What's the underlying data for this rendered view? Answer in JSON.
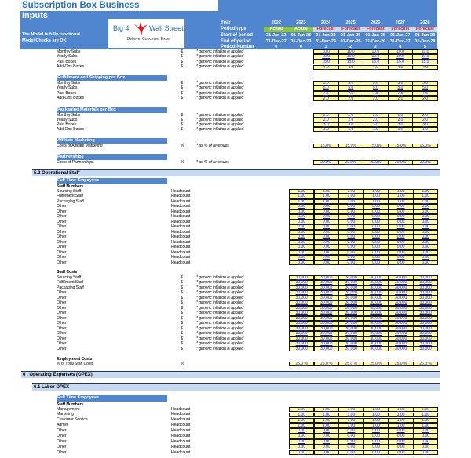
{
  "app_title": "Subscription Box Business",
  "sheet_title": "Inputs",
  "status": {
    "line1": "The Model is fully functional",
    "line2": "Model Checks are OK"
  },
  "logo": {
    "brand_left": "Big 4",
    "brand_right": "Wall Street",
    "tagline": "Believe, Conceive, Excel"
  },
  "colors": {
    "header_blue": "#4f86cf",
    "input_yellow": "#ffff99",
    "input_text": "#1a1aff",
    "actual_green": "#8cc43f",
    "forecast_red": "#e8141b",
    "section_bar": "#c6d9f1"
  },
  "timeline": {
    "labels": [
      "Year",
      "Period type",
      "Start of period",
      "End of period",
      "Period Number"
    ],
    "years": [
      "2022",
      "2023",
      "2024",
      "2025",
      "2026",
      "2027",
      "2028"
    ],
    "period_type": [
      "Actual",
      "Actual",
      "Forecast",
      "Forecast",
      "Forecast",
      "Forecast",
      "Forecast"
    ],
    "start": [
      "31-Jan-22",
      "01-Jan-23",
      "01-Jan-24",
      "01-Jan-25",
      "01-Jan-26",
      "01-Jan-27",
      "01-Jan-28"
    ],
    "end": [
      "31-Dec-22",
      "31-Dec-23",
      "31-Dec-24",
      "31-Dec-25",
      "31-Dec-26",
      "31-Dec-27",
      "31-Dec-28"
    ],
    "period_number": [
      "0",
      "0",
      "1",
      "2",
      "3",
      "4",
      "5"
    ]
  },
  "boxes": {
    "title": "",
    "rows": [
      {
        "label": "Monthly Subs",
        "unit": "$",
        "note": "* generic inflation is applied",
        "values": [
          "10.0",
          "10.0",
          "10.0",
          "10.0",
          "10.0"
        ]
      },
      {
        "label": "Yearly Subs",
        "unit": "$",
        "note": "* generic inflation is applied",
        "values": [
          "10.0",
          "10.0",
          "10.0",
          "10.0",
          "10.0"
        ]
      },
      {
        "label": "Past Boxes",
        "unit": "$",
        "note": "* generic inflation is applied",
        "values": [
          "15.0",
          "15.0",
          "15.0",
          "15.0",
          "15.0"
        ]
      },
      {
        "label": "Add-Ons Boxes",
        "unit": "$",
        "note": "* generic inflation is applied",
        "values": [
          "4.0",
          "4.0",
          "4.0",
          "4.0",
          "4.0"
        ]
      }
    ]
  },
  "fulfillment": {
    "title": "Fulfillment and Shipping per Box",
    "rows": [
      {
        "label": "Monthly Subs",
        "unit": "$",
        "note": "* generic inflation is applied",
        "values": [
          "5.0",
          "5.0",
          "5.0",
          "5.0",
          "5.0"
        ]
      },
      {
        "label": "Yearly Subs",
        "unit": "$",
        "note": "* generic inflation is applied",
        "values": [
          "5.0",
          "5.0",
          "5.0",
          "5.0",
          "5.0"
        ]
      },
      {
        "label": "Past Boxes",
        "unit": "$",
        "note": "* generic inflation is applied",
        "values": [
          "7.5",
          "7.5",
          "7.5",
          "7.5",
          "7.5"
        ]
      },
      {
        "label": "Add-Ons Boxes",
        "unit": "$",
        "note": "* generic inflation is applied",
        "values": [
          "2.0",
          "2.0",
          "2.0",
          "2.0",
          "2.0"
        ]
      }
    ]
  },
  "packaging": {
    "title": "Packaging Materials per Box",
    "rows": [
      {
        "label": "Monthly Subs",
        "unit": "$",
        "note": "* generic inflation is applied",
        "values": [
          "2.0",
          "2.0",
          "2.0",
          "2.0",
          "2.0"
        ]
      },
      {
        "label": "Yearly Subs",
        "unit": "$",
        "note": "* generic inflation is applied",
        "values": [
          "2.0",
          "2.0",
          "2.0",
          "2.0",
          "2.0"
        ]
      },
      {
        "label": "Past Boxes",
        "unit": "$",
        "note": "* generic inflation is applied",
        "values": [
          "3.0",
          "3.0",
          "3.0",
          "3.0",
          "3.0"
        ]
      },
      {
        "label": "Add-Ons Boxes",
        "unit": "$",
        "note": "* generic inflation is applied",
        "values": [
          "1.0",
          "1.0",
          "1.0",
          "1.0",
          "1.0"
        ]
      }
    ]
  },
  "affiliate": {
    "title": "Affiliate Marketing",
    "rows": [
      {
        "label": "Costs of Affiliate Marketing",
        "unit": "%",
        "note": "* as % of revenues",
        "values": [
          "15.0%",
          "15.0%",
          "15.0%",
          "15.0%",
          "15.0%"
        ]
      }
    ]
  },
  "partnerships": {
    "title": "Partnerships",
    "rows": [
      {
        "label": "Costs of Partnerships",
        "unit": "%",
        "note": "* as % of revenues",
        "values": [
          "20.0%",
          "20.0%",
          "20.0%",
          "20.0%",
          "20.0%"
        ]
      }
    ]
  },
  "operational_staff": {
    "section_title": "5.2   Operational Staff",
    "subheader": "Full Time Empoyees",
    "numbers_title": "Staff Numbers",
    "numbers": [
      {
        "label": "Sourcing Staff",
        "unit": "Headcount",
        "values": [
          "1.00",
          "1.00",
          "1.00",
          "1.00",
          "1.00",
          "1.00"
        ]
      },
      {
        "label": "Fulfillment Staff",
        "unit": "Headcount",
        "values": [
          "1.00",
          "1.00",
          "1.00",
          "1.00",
          "1.00",
          "1.00"
        ]
      },
      {
        "label": "Packaging Staff",
        "unit": "Headcount",
        "values": [
          "1.00",
          "1.00",
          "1.00",
          "1.00",
          "1.00",
          "1.00"
        ]
      },
      {
        "label": "Other",
        "unit": "Headcount",
        "values": [
          "0.00",
          "0.00",
          "0.00",
          "0.00",
          "0.00",
          "0.00"
        ]
      },
      {
        "label": "Other",
        "unit": "Headcount",
        "values": [
          "0.00",
          "0.00",
          "0.00",
          "0.00",
          "0.00",
          "0.00"
        ]
      },
      {
        "label": "Other",
        "unit": "Headcount",
        "values": [
          "0.00",
          "0.00",
          "0.00",
          "0.00",
          "0.00",
          "0.00"
        ]
      },
      {
        "label": "Other",
        "unit": "Headcount",
        "values": [
          "0.00",
          "0.00",
          "0.00",
          "0.00",
          "0.00",
          "0.00"
        ]
      },
      {
        "label": "Other",
        "unit": "Headcount",
        "values": [
          "0.00",
          "0.00",
          "0.00",
          "0.00",
          "0.00",
          "0.00"
        ]
      },
      {
        "label": "Other",
        "unit": "Headcount",
        "values": [
          "0.00",
          "0.00",
          "0.00",
          "0.00",
          "0.00",
          "0.00"
        ]
      },
      {
        "label": "Other",
        "unit": "Headcount",
        "values": [
          "0.00",
          "0.00",
          "0.00",
          "0.00",
          "0.00",
          "0.00"
        ]
      },
      {
        "label": "Other",
        "unit": "Headcount",
        "values": [
          "0.00",
          "0.00",
          "0.00",
          "0.00",
          "0.00",
          "0.00"
        ]
      },
      {
        "label": "Other",
        "unit": "Headcount",
        "values": [
          "0.00",
          "0.00",
          "0.00",
          "0.00",
          "0.00",
          "0.00"
        ]
      },
      {
        "label": "Other",
        "unit": "Headcount",
        "values": [
          "0.00",
          "0.00",
          "0.00",
          "0.00",
          "0.00",
          "0.00"
        ]
      },
      {
        "label": "Other",
        "unit": "Headcount",
        "values": [
          "0.00",
          "0.00",
          "0.00",
          "0.00",
          "0.00",
          "0.00"
        ]
      },
      {
        "label": "Other",
        "unit": "Headcount",
        "values": [
          "0.00",
          "0.00",
          "0.00",
          "0.00",
          "0.00",
          "0.00"
        ]
      }
    ],
    "costs_title": "Staff Costs",
    "costs": [
      {
        "label": "Sourcing Staff",
        "unit": "$",
        "note": "* generic inflation is applied",
        "values": [
          "30,000",
          "30,000",
          "30,000",
          "30,000",
          "30,000",
          "30,000"
        ]
      },
      {
        "label": "Fulfillment Staff",
        "unit": "$",
        "note": "* generic inflation is applied",
        "values": [
          "30,000",
          "30,000",
          "30,000",
          "30,000",
          "30,000",
          "30,000"
        ]
      },
      {
        "label": "Packaging Staff",
        "unit": "$",
        "note": "* generic inflation is applied",
        "values": [
          "30,000",
          "30,000",
          "30,000",
          "30,000",
          "30,000",
          "30,000"
        ]
      },
      {
        "label": "Other",
        "unit": "$",
        "note": "* generic inflation is applied",
        "values": [
          "30,000",
          "30,000",
          "30,000",
          "30,000",
          "30,000",
          "30,000"
        ]
      },
      {
        "label": "Other",
        "unit": "$",
        "note": "* generic inflation is applied",
        "values": [
          "30,000",
          "30,000",
          "30,000",
          "30,000",
          "30,000",
          "30,000"
        ]
      },
      {
        "label": "Other",
        "unit": "$",
        "note": "* generic inflation is applied",
        "values": [
          "30,000",
          "30,000",
          "30,000",
          "30,000",
          "30,000",
          "30,000"
        ]
      },
      {
        "label": "Other",
        "unit": "$",
        "note": "* generic inflation is applied",
        "values": [
          "30,000",
          "30,000",
          "30,000",
          "30,000",
          "30,000",
          "30,000"
        ]
      },
      {
        "label": "Other",
        "unit": "$",
        "note": "* generic inflation is applied",
        "values": [
          "30,000",
          "30,000",
          "30,000",
          "30,000",
          "30,000",
          "30,000"
        ]
      },
      {
        "label": "Other",
        "unit": "$",
        "note": "* generic inflation is applied",
        "values": [
          "30,000",
          "30,000",
          "30,000",
          "30,000",
          "30,000",
          "30,000"
        ]
      },
      {
        "label": "Other",
        "unit": "$",
        "note": "* generic inflation is applied",
        "values": [
          "30,000",
          "30,000",
          "30,000",
          "30,000",
          "30,000",
          "30,000"
        ]
      },
      {
        "label": "Other",
        "unit": "$",
        "note": "* generic inflation is applied",
        "values": [
          "30,000",
          "30,000",
          "30,000",
          "30,000",
          "30,000",
          "30,000"
        ]
      },
      {
        "label": "Other",
        "unit": "$",
        "note": "* generic inflation is applied",
        "values": [
          "30,000",
          "30,000",
          "30,000",
          "30,000",
          "30,000",
          "30,000"
        ]
      },
      {
        "label": "Other",
        "unit": "$",
        "note": "* generic inflation is applied",
        "values": [
          "30,000",
          "30,000",
          "30,000",
          "30,000",
          "30,000",
          "30,000"
        ]
      },
      {
        "label": "Other",
        "unit": "$",
        "note": "* generic inflation is applied",
        "values": [
          "30,000",
          "30,000",
          "30,000",
          "30,000",
          "30,000",
          "30,000"
        ]
      },
      {
        "label": "Other",
        "unit": "$",
        "note": "* generic inflation is applied",
        "values": [
          "30,000",
          "30,000",
          "30,000",
          "30,000",
          "30,000",
          "30,000"
        ]
      }
    ],
    "employment_title": "Employment Costs",
    "employment": [
      {
        "label": "% of Total Staff Costs",
        "unit": "%",
        "values": [
          "25.0 %",
          "25.0 %",
          "25.0 %",
          "25.0 %",
          "25.0 %",
          "25.0 %"
        ]
      }
    ]
  },
  "opex": {
    "section_title": "6 .  Operating Expenses (OPEX)",
    "sub_section_title": "6.1   Labor OPEX",
    "subheader": "Full Time Empoyees",
    "numbers_title": "Staff Numbers",
    "numbers": [
      {
        "label": "Management",
        "unit": "Headcount",
        "values": [
          "1.00",
          "1.00",
          "1.00",
          "1.00",
          "1.00",
          "1.00"
        ]
      },
      {
        "label": "Marketing",
        "unit": "Headcount",
        "values": [
          "1.00",
          "1.00",
          "1.00",
          "1.00",
          "1.00",
          "1.00"
        ]
      },
      {
        "label": "Customer Service",
        "unit": "Headcount",
        "values": [
          "1.00",
          "1.00",
          "1.00",
          "1.00",
          "1.00",
          "1.00"
        ]
      },
      {
        "label": "Admin",
        "unit": "Headcount",
        "values": [
          "1.00",
          "1.00",
          "1.00",
          "1.00",
          "1.00",
          "1.00"
        ]
      },
      {
        "label": "Other",
        "unit": "Headcount",
        "values": [
          "0.00",
          "0.00",
          "0.00",
          "0.00",
          "0.00",
          "0.00"
        ]
      },
      {
        "label": "Other",
        "unit": "Headcount",
        "values": [
          "0.00",
          "0.00",
          "0.00",
          "0.00",
          "0.00",
          "0.00"
        ]
      },
      {
        "label": "Other",
        "unit": "Headcount",
        "values": [
          "0.00",
          "0.00",
          "0.00",
          "0.00",
          "0.00",
          "0.00"
        ]
      },
      {
        "label": "Other",
        "unit": "Headcount",
        "values": [
          "0.00",
          "0.00",
          "0.00",
          "0.00",
          "0.00",
          "0.00"
        ]
      },
      {
        "label": "Other",
        "unit": "Headcount",
        "values": [
          "0.00",
          "0.00",
          "0.00",
          "0.00",
          "0.00",
          "0.00"
        ]
      }
    ]
  }
}
